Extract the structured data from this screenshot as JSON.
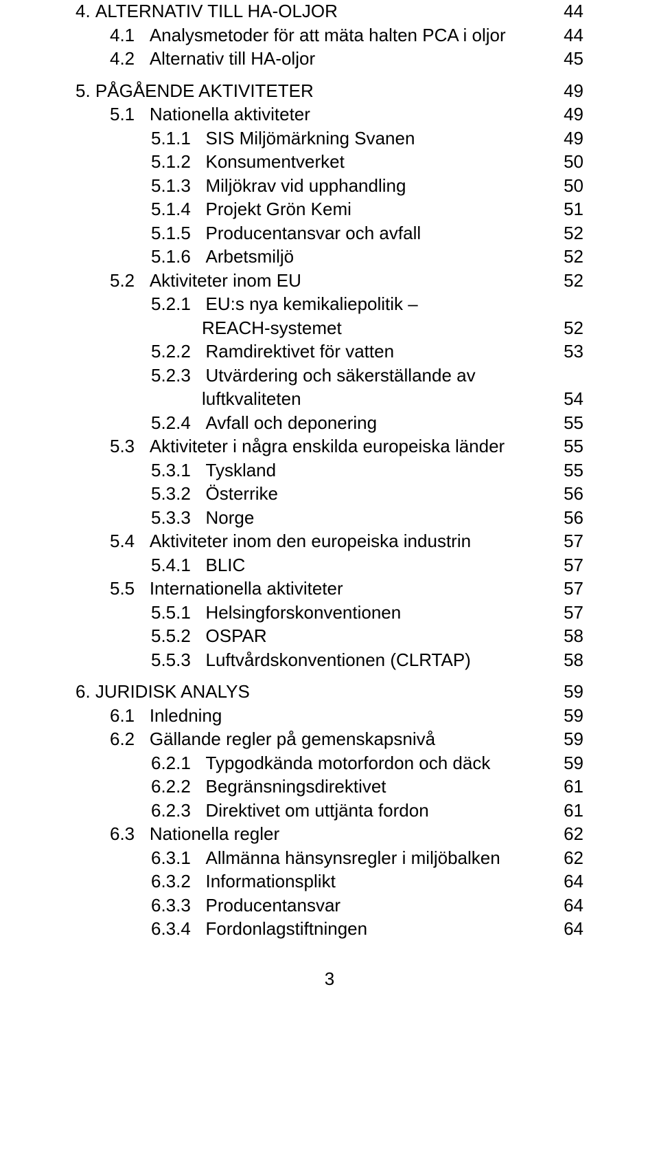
{
  "page_number": "3",
  "toc": [
    {
      "num": "4.",
      "text": "ALTERNATIV TILL HA-OLJOR",
      "page": "44",
      "indent": 0,
      "spaceBefore": false
    },
    {
      "num": "4.1",
      "text": "Analysmetoder för att mäta halten PCA i oljor",
      "page": "44",
      "indent": 1,
      "spaceBefore": false
    },
    {
      "num": "4.2",
      "text": "Alternativ till HA-oljor",
      "page": "45",
      "indent": 1,
      "spaceBefore": false
    },
    {
      "num": "5.",
      "text": "PÅGÅENDE AKTIVITETER",
      "page": "49",
      "indent": 0,
      "spaceBefore": true
    },
    {
      "num": "5.1",
      "text": "Nationella aktiviteter",
      "page": "49",
      "indent": 1,
      "spaceBefore": false
    },
    {
      "num": "5.1.1",
      "text": "SIS Miljömärkning Svanen",
      "page": "49",
      "indent": 2,
      "spaceBefore": false
    },
    {
      "num": "5.1.2",
      "text": "Konsumentverket",
      "page": "50",
      "indent": 2,
      "spaceBefore": false
    },
    {
      "num": "5.1.3",
      "text": "Miljökrav vid upphandling",
      "page": "50",
      "indent": 2,
      "spaceBefore": false
    },
    {
      "num": "5.1.4",
      "text": "Projekt Grön Kemi",
      "page": "51",
      "indent": 2,
      "spaceBefore": false
    },
    {
      "num": "5.1.5",
      "text": "Producentansvar och avfall",
      "page": "52",
      "indent": 2,
      "spaceBefore": false
    },
    {
      "num": "5.1.6",
      "text": "Arbetsmiljö",
      "page": "52",
      "indent": 2,
      "spaceBefore": false
    },
    {
      "num": "5.2",
      "text": "Aktiviteter inom EU",
      "page": "52",
      "indent": 1,
      "spaceBefore": false
    },
    {
      "num": "5.2.1",
      "text": "EU:s nya kemikaliepolitik –",
      "page": "",
      "indent": 2,
      "spaceBefore": false,
      "wrap_first": true
    },
    {
      "num": "",
      "text": "REACH-systemet",
      "page": "52",
      "indent": 2,
      "spaceBefore": false,
      "wrap_rest": true
    },
    {
      "num": "5.2.2",
      "text": "Ramdirektivet för vatten",
      "page": "53",
      "indent": 2,
      "spaceBefore": false
    },
    {
      "num": "5.2.3",
      "text": "Utvärdering och säkerställande av",
      "page": "",
      "indent": 2,
      "spaceBefore": false,
      "wrap_first": true
    },
    {
      "num": "",
      "text": "luftkvaliteten",
      "page": "54",
      "indent": 2,
      "spaceBefore": false,
      "wrap_rest": true
    },
    {
      "num": "5.2.4",
      "text": "Avfall och deponering",
      "page": "55",
      "indent": 2,
      "spaceBefore": false
    },
    {
      "num": "5.3",
      "text": "Aktiviteter i några enskilda europeiska länder",
      "page": "55",
      "indent": 1,
      "spaceBefore": false
    },
    {
      "num": "5.3.1",
      "text": "Tyskland",
      "page": "55",
      "indent": 2,
      "spaceBefore": false
    },
    {
      "num": "5.3.2",
      "text": "Österrike",
      "page": "56",
      "indent": 2,
      "spaceBefore": false
    },
    {
      "num": "5.3.3",
      "text": "Norge",
      "page": "56",
      "indent": 2,
      "spaceBefore": false
    },
    {
      "num": "5.4",
      "text": "Aktiviteter inom den europeiska industrin",
      "page": "57",
      "indent": 1,
      "spaceBefore": false
    },
    {
      "num": "5.4.1",
      "text": "BLIC",
      "page": "57",
      "indent": 2,
      "spaceBefore": false
    },
    {
      "num": "5.5",
      "text": "Internationella aktiviteter",
      "page": "57",
      "indent": 1,
      "spaceBefore": false
    },
    {
      "num": "5.5.1",
      "text": "Helsingforskonventionen",
      "page": "57",
      "indent": 2,
      "spaceBefore": false
    },
    {
      "num": "5.5.2",
      "text": "OSPAR",
      "page": "58",
      "indent": 2,
      "spaceBefore": false
    },
    {
      "num": "5.5.3",
      "text": "Luftvårdskonventionen (CLRTAP)",
      "page": "58",
      "indent": 2,
      "spaceBefore": false
    },
    {
      "num": "6.",
      "text": "JURIDISK ANALYS",
      "page": "59",
      "indent": 0,
      "spaceBefore": true
    },
    {
      "num": "6.1",
      "text": "Inledning",
      "page": "59",
      "indent": 1,
      "spaceBefore": false
    },
    {
      "num": "6.2",
      "text": "Gällande regler på gemenskapsnivå",
      "page": "59",
      "indent": 1,
      "spaceBefore": false
    },
    {
      "num": "6.2.1",
      "text": "Typgodkända motorfordon och däck",
      "page": "59",
      "indent": 2,
      "spaceBefore": false
    },
    {
      "num": "6.2.2",
      "text": "Begränsningsdirektivet",
      "page": "61",
      "indent": 2,
      "spaceBefore": false
    },
    {
      "num": "6.2.3",
      "text": "Direktivet om uttjänta fordon",
      "page": "61",
      "indent": 2,
      "spaceBefore": false
    },
    {
      "num": "6.3",
      "text": "Nationella regler",
      "page": "62",
      "indent": 1,
      "spaceBefore": false
    },
    {
      "num": "6.3.1",
      "text": "Allmänna hänsynsregler i miljöbalken",
      "page": "62",
      "indent": 2,
      "spaceBefore": false
    },
    {
      "num": "6.3.2",
      "text": "Informationsplikt",
      "page": "64",
      "indent": 2,
      "spaceBefore": false
    },
    {
      "num": "6.3.3",
      "text": "Producentansvar",
      "page": "64",
      "indent": 2,
      "spaceBefore": false
    },
    {
      "num": "6.3.4",
      "text": "Fordonlagstiftningen",
      "page": "64",
      "indent": 2,
      "spaceBefore": false
    }
  ],
  "num_sep": {
    "0": " ",
    "1": "   ",
    "2": "   "
  }
}
